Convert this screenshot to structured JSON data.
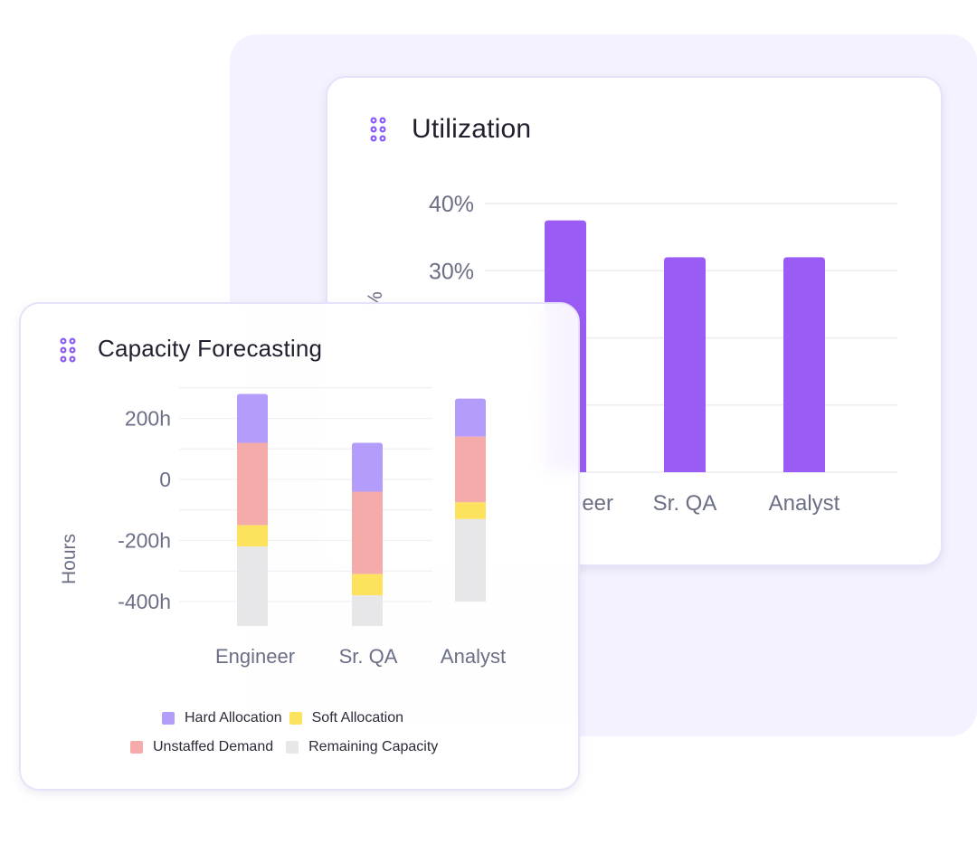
{
  "colors": {
    "util_bar": "#9b5cf5",
    "hard": "#b49cfb",
    "soft": "#fde35d",
    "unstaffed": "#f6abab",
    "remaining": "#e7e7ea",
    "grid": "#ececf1",
    "tick": "#6b6f85",
    "icon": "#8b5cf6"
  },
  "icons": {
    "drag": "drag-handle-icon"
  },
  "utilization": {
    "title": "Utilization",
    "chart_data": {
      "type": "bar",
      "categories": [
        "Engineer",
        "Sr. QA",
        "Analyst"
      ],
      "values": [
        37.5,
        32,
        32
      ],
      "ylabel": "%",
      "ylim": [
        0,
        40
      ],
      "y_ticks": [
        "40%",
        "30%"
      ],
      "grid": true,
      "category_labels": [
        "eer",
        "Sr. QA",
        "Analyst"
      ]
    }
  },
  "capacity": {
    "title": "Capacity Forecasting",
    "chart_data": {
      "type": "bar",
      "stacked": true,
      "categories": [
        "Engineer",
        "Sr. QA",
        "Analyst"
      ],
      "ylabel": "Hours",
      "ylim": [
        -480,
        280
      ],
      "y_ticks": [
        {
          "value": 200,
          "label": "200h"
        },
        {
          "value": 0,
          "label": "0"
        },
        {
          "value": -200,
          "label": "-200h"
        },
        {
          "value": -400,
          "label": "-400h"
        }
      ],
      "grid": true,
      "series": [
        {
          "name": "Hard Allocation",
          "color_key": "hard",
          "ranges": [
            [
              120,
              280
            ],
            [
              -40,
              120
            ],
            [
              140,
              265
            ]
          ]
        },
        {
          "name": "Unstaffed Demand",
          "color_key": "unstaffed",
          "ranges": [
            [
              -150,
              120
            ],
            [
              -310,
              -40
            ],
            [
              -75,
              140
            ]
          ]
        },
        {
          "name": "Soft Allocation",
          "color_key": "soft",
          "ranges": [
            [
              -220,
              -150
            ],
            [
              -380,
              -310
            ],
            [
              -130,
              -75
            ]
          ]
        },
        {
          "name": "Remaining Capacity",
          "color_key": "remaining",
          "ranges": [
            [
              -480,
              -220
            ],
            [
              -480,
              -380
            ],
            [
              -400,
              -130
            ]
          ]
        }
      ],
      "legend": [
        [
          "Hard Allocation",
          "Soft Allocation"
        ],
        [
          "Unstaffed Demand",
          "Remaining Capacity"
        ]
      ],
      "legend_colors": [
        [
          "hard",
          "soft"
        ],
        [
          "unstaffed",
          "remaining"
        ]
      ],
      "legend_position": "bottom"
    }
  }
}
